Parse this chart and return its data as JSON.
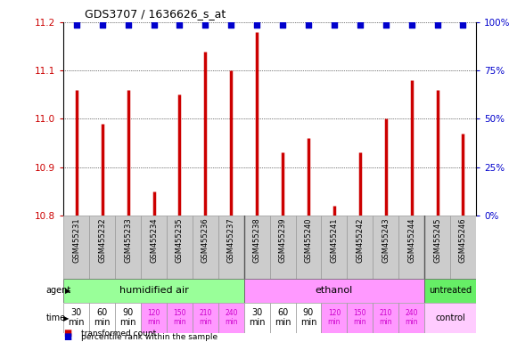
{
  "title": "GDS3707 / 1636626_s_at",
  "samples": [
    "GSM455231",
    "GSM455232",
    "GSM455233",
    "GSM455234",
    "GSM455235",
    "GSM455236",
    "GSM455237",
    "GSM455238",
    "GSM455239",
    "GSM455240",
    "GSM455241",
    "GSM455242",
    "GSM455243",
    "GSM455244",
    "GSM455245",
    "GSM455246"
  ],
  "bar_values": [
    11.06,
    10.99,
    11.06,
    10.85,
    11.05,
    11.14,
    11.1,
    11.18,
    10.93,
    10.96,
    10.82,
    10.93,
    11.0,
    11.08,
    11.06,
    10.97
  ],
  "bar_color": "#cc0000",
  "percentile_color": "#0000cc",
  "ylim": [
    10.8,
    11.2
  ],
  "yticks": [
    10.8,
    10.9,
    11.0,
    11.1,
    11.2
  ],
  "y2ticks": [
    0,
    25,
    50,
    75,
    100
  ],
  "agent_labels": [
    "humidified air",
    "ethanol",
    "untreated"
  ],
  "agent_colors": [
    "#99ff99",
    "#ff99ff",
    "#66ee66"
  ],
  "time_labels": [
    "30\nmin",
    "60\nmin",
    "90\nmin",
    "120\nmin",
    "150\nmin",
    "210\nmin",
    "240\nmin",
    "30\nmin",
    "60\nmin",
    "90\nmin",
    "120\nmin",
    "150\nmin",
    "210\nmin",
    "240\nmin"
  ],
  "time_colors": [
    "#ffffff",
    "#ffffff",
    "#ffffff",
    "#ff99ff",
    "#ff99ff",
    "#ff99ff",
    "#ff99ff",
    "#ffffff",
    "#ffffff",
    "#ffffff",
    "#ff99ff",
    "#ff99ff",
    "#ff99ff",
    "#ff99ff"
  ],
  "time_text_colors": [
    "#000000",
    "#000000",
    "#000000",
    "#cc00cc",
    "#cc00cc",
    "#cc00cc",
    "#cc00cc",
    "#000000",
    "#000000",
    "#000000",
    "#cc00cc",
    "#cc00cc",
    "#cc00cc",
    "#cc00cc"
  ],
  "control_label": "control",
  "control_bg": "#ffccff",
  "sample_bg": "#cccccc",
  "legend_items": [
    {
      "color": "#cc0000",
      "label": "transformed count"
    },
    {
      "color": "#0000cc",
      "label": "percentile rank within the sample"
    }
  ],
  "background_color": "#ffffff"
}
